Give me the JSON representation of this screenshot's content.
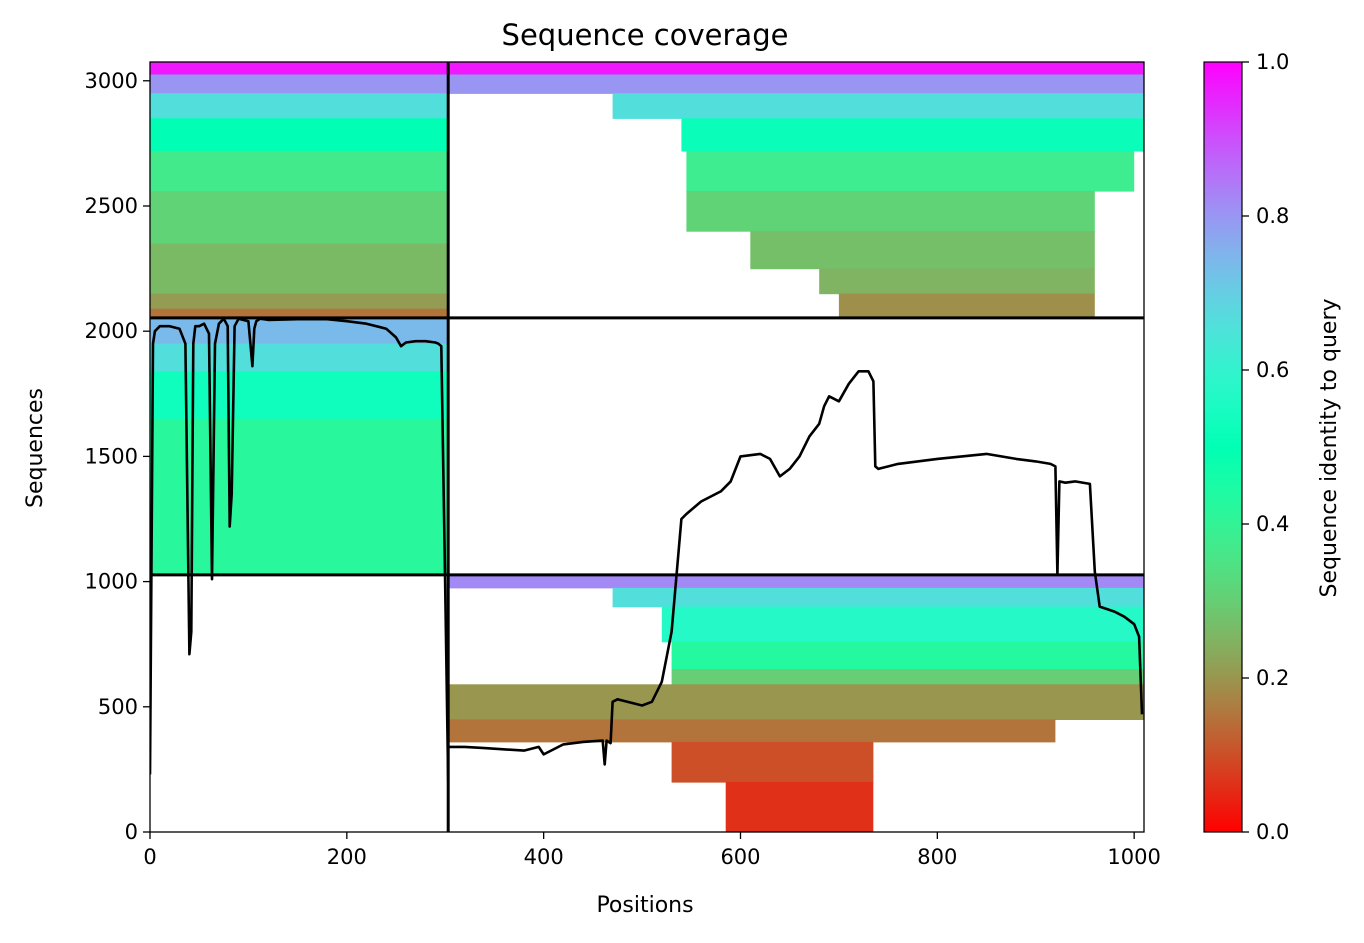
{
  "chart_data": {
    "type": "heatmap",
    "title": "Sequence coverage",
    "xlabel": "Positions",
    "ylabel": "Sequences",
    "xlim": [
      0,
      1010
    ],
    "ylim": [
      0,
      3075
    ],
    "xticks": [
      0,
      200,
      400,
      600,
      800,
      1000
    ],
    "yticks": [
      0,
      500,
      1000,
      1500,
      2000,
      2500,
      3000
    ],
    "colormap": "rainbow_r",
    "colorbar": {
      "label": "Sequence identity to query",
      "range": [
        0,
        1
      ],
      "ticks": [
        "0.0",
        "0.2",
        "0.4",
        "0.6",
        "0.8",
        "1.0"
      ]
    },
    "segment_boundaries": {
      "positions": [
        303
      ],
      "sequences": [
        1027,
        2053
      ]
    },
    "blocks": [
      {
        "name": "block-top-left",
        "x0": 0,
        "x1": 303,
        "y0": 2053,
        "y1": 3075,
        "bands": [
          {
            "y0": 3025,
            "y1": 3075,
            "identity": 0.97
          },
          {
            "y0": 2950,
            "y1": 3025,
            "identity": 0.8
          },
          {
            "y0": 2850,
            "y1": 2950,
            "identity": 0.66
          },
          {
            "y0": 2720,
            "y1": 2850,
            "identity": 0.5
          },
          {
            "y0": 2560,
            "y1": 2720,
            "identity": 0.37
          },
          {
            "y0": 2350,
            "y1": 2560,
            "identity": 0.31
          },
          {
            "y0": 2150,
            "y1": 2350,
            "identity": 0.26
          },
          {
            "y0": 2090,
            "y1": 2150,
            "identity": 0.21
          },
          {
            "y0": 2053,
            "y1": 2090,
            "identity": 0.15
          }
        ]
      },
      {
        "name": "block-top-right",
        "x0": 303,
        "x1": 1010,
        "y0": 2053,
        "y1": 3075,
        "bands": [
          {
            "y0": 3025,
            "y1": 3075,
            "identity": 0.97,
            "x0": 303,
            "x1": 1010
          },
          {
            "y0": 2950,
            "y1": 3025,
            "identity": 0.8,
            "x0": 303,
            "x1": 1010
          },
          {
            "y0": 2850,
            "y1": 2950,
            "identity": 0.66,
            "x0": 470,
            "x1": 1010
          },
          {
            "y0": 2720,
            "y1": 2850,
            "identity": 0.52,
            "x0": 540,
            "x1": 1010
          },
          {
            "y0": 2560,
            "y1": 2720,
            "identity": 0.38,
            "x0": 545,
            "x1": 1000
          },
          {
            "y0": 2400,
            "y1": 2560,
            "identity": 0.31,
            "x0": 545,
            "x1": 960
          },
          {
            "y0": 2250,
            "y1": 2400,
            "identity": 0.27,
            "x0": 610,
            "x1": 960
          },
          {
            "y0": 2150,
            "y1": 2250,
            "identity": 0.25,
            "x0": 680,
            "x1": 960
          },
          {
            "y0": 2053,
            "y1": 2150,
            "identity": 0.19,
            "x0": 700,
            "x1": 960
          }
        ]
      },
      {
        "name": "block-middle-left",
        "x0": 0,
        "x1": 303,
        "y0": 1027,
        "y1": 2053,
        "bands": [
          {
            "y0": 1950,
            "y1": 2053,
            "identity": 0.74
          },
          {
            "y0": 1840,
            "y1": 1950,
            "identity": 0.66
          },
          {
            "y0": 1650,
            "y1": 1840,
            "identity": 0.53
          },
          {
            "y0": 1027,
            "y1": 1650,
            "identity": 0.42
          }
        ]
      },
      {
        "name": "block-bottom-right",
        "x0": 303,
        "x1": 1010,
        "y0": 0,
        "y1": 1027,
        "bands": [
          {
            "y0": 975,
            "y1": 1027,
            "identity": 0.82,
            "x0": 303,
            "x1": 1010
          },
          {
            "y0": 900,
            "y1": 975,
            "identity": 0.66,
            "x0": 470,
            "x1": 1010
          },
          {
            "y0": 760,
            "y1": 900,
            "identity": 0.57,
            "x0": 520,
            "x1": 1010
          },
          {
            "y0": 650,
            "y1": 760,
            "identity": 0.43,
            "x0": 530,
            "x1": 1010
          },
          {
            "y0": 590,
            "y1": 650,
            "identity": 0.3,
            "x0": 530,
            "x1": 1010
          },
          {
            "y0": 450,
            "y1": 590,
            "identity": 0.2,
            "x0": 303,
            "x1": 1010
          },
          {
            "y0": 360,
            "y1": 450,
            "identity": 0.15,
            "x0": 303,
            "x1": 920
          },
          {
            "y0": 200,
            "y1": 360,
            "identity": 0.1,
            "x0": 530,
            "x1": 735
          },
          {
            "y0": 0,
            "y1": 200,
            "identity": 0.06,
            "x0": 585,
            "x1": 735
          }
        ]
      }
    ],
    "coverage_line": {
      "x": [
        0,
        3,
        5,
        10,
        20,
        30,
        36,
        40,
        42,
        44,
        46,
        50,
        55,
        60,
        63,
        66,
        70,
        75,
        79,
        81,
        83,
        86,
        90,
        100,
        104,
        106,
        108,
        112,
        120,
        150,
        180,
        200,
        220,
        240,
        250,
        255,
        260,
        270,
        280,
        290,
        293,
        296,
        300,
        303,
        303,
        305,
        320,
        340,
        380,
        395,
        400,
        420,
        440,
        460,
        462,
        464,
        468,
        470,
        475,
        480,
        490,
        500,
        510,
        520,
        530,
        540,
        545,
        560,
        580,
        590,
        600,
        620,
        630,
        640,
        650,
        660,
        670,
        680,
        685,
        690,
        700,
        710,
        720,
        730,
        735,
        737,
        740,
        760,
        800,
        850,
        880,
        900,
        915,
        920,
        922,
        924,
        930,
        940,
        955,
        960,
        965,
        980,
        990,
        1000,
        1005,
        1008
      ],
      "y": [
        230,
        1950,
        2000,
        2020,
        2020,
        2010,
        1950,
        710,
        800,
        1950,
        2020,
        2020,
        2030,
        1990,
        1010,
        1950,
        2030,
        2050,
        2020,
        1220,
        1350,
        2020,
        2050,
        2040,
        1860,
        2010,
        2040,
        2050,
        2045,
        2048,
        2048,
        2040,
        2030,
        2010,
        1975,
        1940,
        1955,
        1960,
        1960,
        1955,
        1950,
        1940,
        980,
        200,
        340,
        340,
        340,
        335,
        325,
        340,
        310,
        350,
        360,
        365,
        270,
        365,
        355,
        520,
        530,
        525,
        515,
        505,
        520,
        600,
        800,
        1250,
        1270,
        1320,
        1360,
        1400,
        1500,
        1510,
        1490,
        1420,
        1450,
        1500,
        1580,
        1630,
        1700,
        1740,
        1720,
        1790,
        1840,
        1840,
        1800,
        1460,
        1450,
        1470,
        1490,
        1510,
        1490,
        1480,
        1470,
        1460,
        1030,
        1400,
        1395,
        1400,
        1390,
        1040,
        900,
        880,
        860,
        830,
        780,
        470
      ]
    }
  }
}
